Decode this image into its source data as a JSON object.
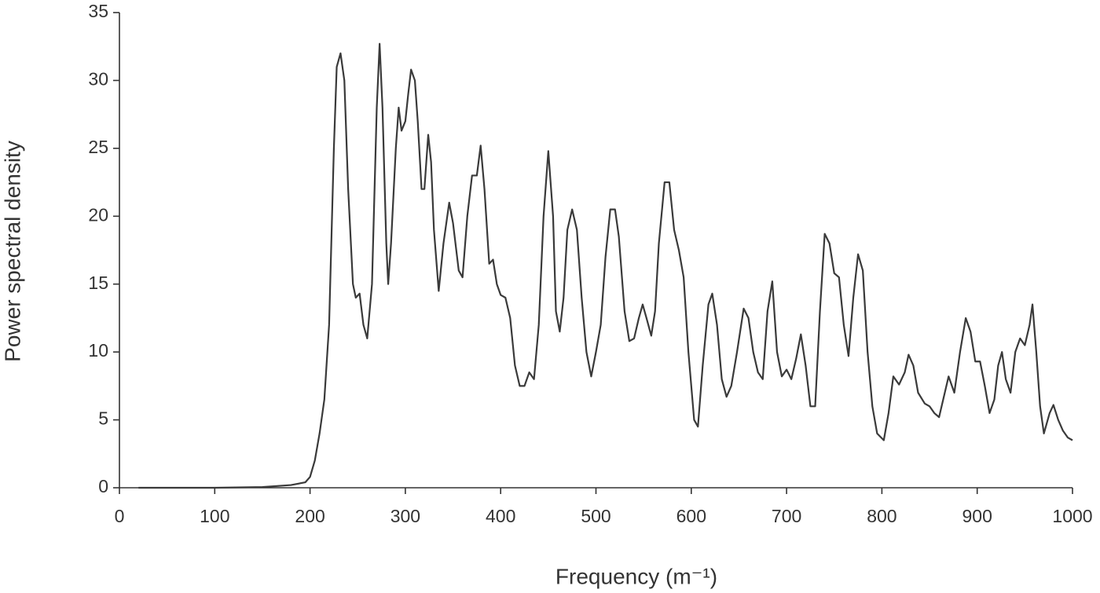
{
  "chart_data": {
    "type": "line",
    "xlabel": "Frequency (m⁻¹)",
    "ylabel": "Power spectral density",
    "color": "#3a3a3a",
    "xlim": [
      0,
      1000
    ],
    "ylim": [
      0,
      35
    ],
    "xticks": [
      0,
      100,
      200,
      300,
      400,
      500,
      600,
      700,
      800,
      900,
      1000
    ],
    "yticks": [
      0,
      5,
      10,
      15,
      20,
      25,
      30,
      35
    ],
    "grid": false,
    "x": [
      20,
      100,
      150,
      180,
      195,
      200,
      205,
      210,
      215,
      220,
      225,
      228,
      232,
      236,
      240,
      245,
      248,
      252,
      256,
      260,
      265,
      270,
      273,
      276,
      280,
      282,
      285,
      290,
      293,
      296,
      300,
      303,
      306,
      310,
      313,
      317,
      320,
      324,
      327,
      330,
      335,
      340,
      346,
      350,
      356,
      360,
      365,
      370,
      375,
      379,
      383,
      388,
      392,
      396,
      400,
      405,
      410,
      415,
      420,
      425,
      430,
      435,
      440,
      445,
      450,
      455,
      458,
      462,
      466,
      470,
      475,
      480,
      485,
      490,
      495,
      500,
      505,
      510,
      515,
      520,
      524,
      530,
      535,
      540,
      545,
      549,
      553,
      558,
      562,
      566,
      572,
      577,
      582,
      587,
      592,
      597,
      603,
      607,
      612,
      618,
      622,
      627,
      632,
      637,
      642,
      648,
      655,
      660,
      665,
      670,
      675,
      680,
      685,
      690,
      695,
      700,
      705,
      710,
      715,
      720,
      725,
      730,
      735,
      740,
      745,
      750,
      755,
      760,
      765,
      770,
      775,
      780,
      785,
      790,
      795,
      802,
      807,
      812,
      818,
      824,
      828,
      833,
      838,
      845,
      850,
      855,
      860,
      866,
      870,
      876,
      882,
      888,
      893,
      898,
      903,
      908,
      913,
      918,
      922,
      926,
      930,
      935,
      940,
      945,
      950,
      955,
      958,
      962,
      966,
      970,
      976,
      980,
      985,
      990,
      995,
      1000
    ],
    "values": [
      0,
      0,
      0.05,
      0.2,
      0.4,
      0.8,
      2,
      4,
      6.5,
      12,
      25,
      31,
      32,
      30,
      22,
      15,
      14,
      14.3,
      12,
      11,
      15,
      28,
      32.7,
      28,
      18,
      15,
      18,
      25,
      28,
      26.3,
      27,
      29,
      30.8,
      30,
      27,
      22,
      22,
      26,
      24,
      19,
      14.5,
      18,
      21,
      19.5,
      16,
      15.5,
      20,
      23,
      23,
      25.2,
      22,
      16.5,
      16.8,
      15,
      14.2,
      14,
      12.5,
      9,
      7.5,
      7.5,
      8.5,
      8,
      12,
      20,
      24.8,
      20,
      13,
      11.5,
      14,
      19,
      20.5,
      19,
      14,
      10,
      8.2,
      10,
      12,
      17,
      20.5,
      20.5,
      18.5,
      13,
      10.8,
      11,
      12.5,
      13.5,
      12.5,
      11.2,
      13,
      18,
      22.5,
      22.5,
      19,
      17.5,
      15.5,
      10,
      5,
      4.5,
      9,
      13.5,
      14.3,
      12,
      8,
      6.7,
      7.5,
      10,
      13.2,
      12.5,
      10,
      8.5,
      8,
      13,
      15.2,
      10,
      8.2,
      8.7,
      8,
      9.5,
      11.3,
      9,
      6,
      6,
      13,
      18.7,
      18,
      15.8,
      15.5,
      12,
      9.7,
      14,
      17.2,
      16,
      10,
      6,
      4,
      3.5,
      5.5,
      8.2,
      7.6,
      8.5,
      9.8,
      9,
      7,
      6.2,
      6,
      5.5,
      5.2,
      7,
      8.2,
      7,
      10,
      12.5,
      11.5,
      9.3,
      9.3,
      7.5,
      5.5,
      6.5,
      9,
      10,
      8,
      7,
      10,
      11,
      10.5,
      12,
      13.5,
      10,
      6,
      4,
      5.5,
      6.1,
      5,
      4.2,
      3.7,
      3.5
    ]
  }
}
